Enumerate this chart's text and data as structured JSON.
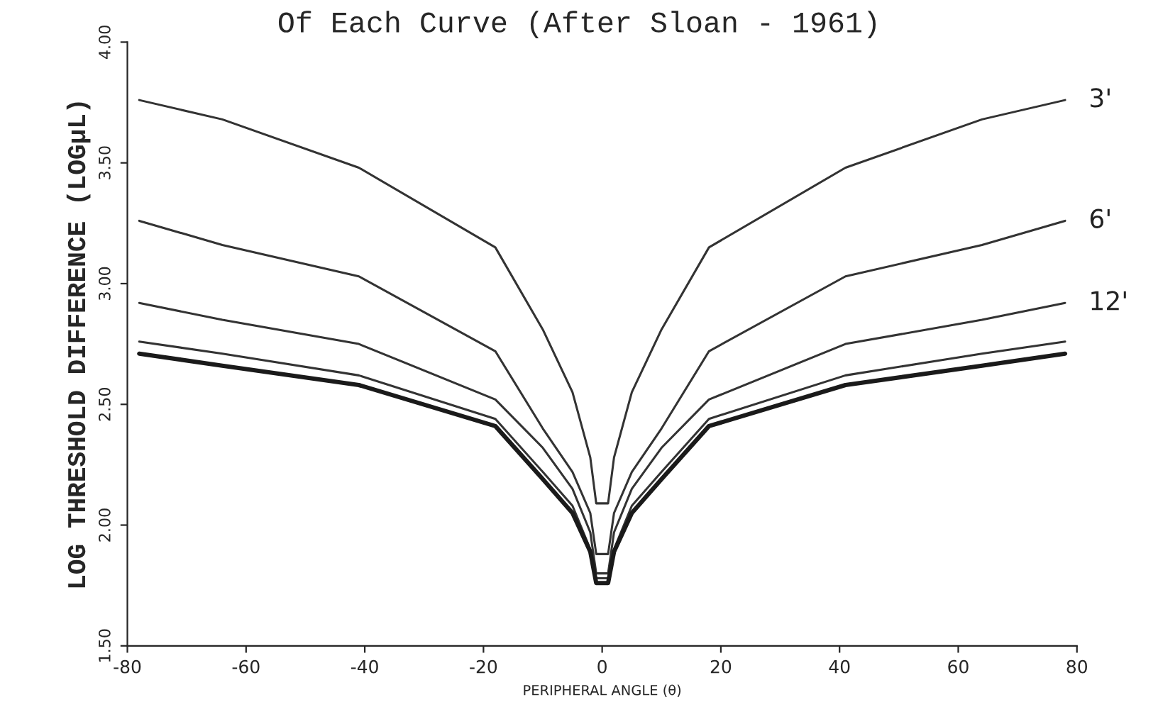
{
  "chart_data": {
    "type": "line",
    "title": "Of Each Curve (After Sloan - 1961)",
    "xlabel": "PERIPHERAL ANGLE (θ)",
    "ylabel": "LOG THRESHOLD DIFFERENCE (LOGμL)",
    "x": [
      -78,
      -64,
      -41,
      -18,
      -10,
      -5,
      -2,
      -1,
      1,
      2,
      5,
      10,
      18,
      41,
      64,
      78
    ],
    "series": [
      {
        "name": "3'",
        "color": "#333333",
        "values": [
          3.76,
          3.68,
          3.48,
          3.15,
          2.81,
          2.55,
          2.28,
          2.09,
          2.09,
          2.28,
          2.55,
          2.81,
          3.15,
          3.48,
          3.68,
          3.76
        ]
      },
      {
        "name": "6'",
        "color": "#333333",
        "values": [
          3.26,
          3.16,
          3.03,
          2.72,
          2.4,
          2.22,
          2.05,
          1.88,
          1.88,
          2.05,
          2.22,
          2.4,
          2.72,
          3.03,
          3.16,
          3.26
        ]
      },
      {
        "name": "12'",
        "color": "#333333",
        "values": [
          2.92,
          2.85,
          2.75,
          2.52,
          2.32,
          2.15,
          1.97,
          1.8,
          1.8,
          1.97,
          2.15,
          2.32,
          2.52,
          2.75,
          2.85,
          2.92
        ]
      },
      {
        "color": "#333333",
        "values": [
          2.76,
          2.71,
          2.62,
          2.44,
          2.22,
          2.08,
          1.9,
          1.78,
          1.78,
          1.9,
          2.08,
          2.22,
          2.44,
          2.62,
          2.71,
          2.76
        ]
      },
      {
        "color": "#1a1a1a",
        "values": [
          2.71,
          2.66,
          2.58,
          2.41,
          2.19,
          2.05,
          1.89,
          1.76,
          1.76,
          1.89,
          2.05,
          2.19,
          2.41,
          2.58,
          2.66,
          2.71
        ]
      }
    ],
    "xlim": [
      -80,
      80
    ],
    "xticks": [
      -80,
      -60,
      -40,
      -20,
      0,
      20,
      40,
      60,
      80
    ],
    "ylim": [
      1.5,
      4.0
    ],
    "yticks": [
      {
        "value": 1.5,
        "label": "1.50"
      },
      {
        "value": 2.0,
        "label": "2.00"
      },
      {
        "value": 2.5,
        "label": "2.50"
      },
      {
        "value": 3.0,
        "label": "3.00"
      },
      {
        "value": 3.5,
        "label": "3.50"
      },
      {
        "value": 4.0,
        "label": "4.00"
      }
    ],
    "grid": false,
    "legend": false,
    "marker": "none",
    "line_style": "solid"
  }
}
